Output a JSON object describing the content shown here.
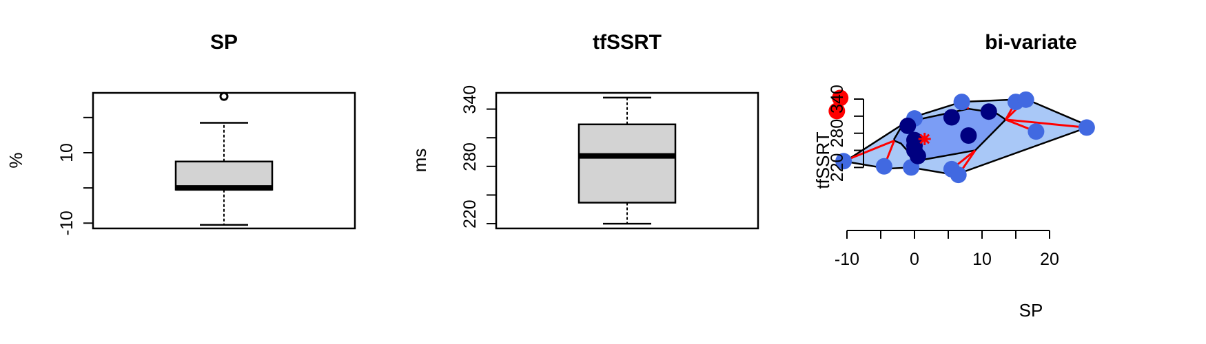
{
  "chart_data": [
    {
      "type": "boxplot",
      "title": "SP",
      "ylabel": "%",
      "yticks": [
        "-10",
        "10"
      ],
      "ylim": [
        -11.5,
        27
      ],
      "stats": {
        "min": -10.5,
        "q1": -0.5,
        "median": 0,
        "q3": 7.5,
        "max": 18.5,
        "outliers": [
          26
        ]
      },
      "fill": "#d3d3d3"
    },
    {
      "type": "boxplot",
      "title": "tfSSRT",
      "ylabel": "ms",
      "yticks": [
        "220",
        "280",
        "340"
      ],
      "ylim": [
        205,
        347
      ],
      "stats": {
        "min": 210,
        "q1": 232,
        "median": 281,
        "q3": 314,
        "max": 342,
        "outliers": []
      },
      "fill": "#d3d3d3"
    },
    {
      "type": "scatter",
      "subtype": "bagplot",
      "title": "bi-variate",
      "xlabel": "SP",
      "ylabel": "tfSSRT",
      "xticks": [
        "-10",
        "0",
        "10",
        "20"
      ],
      "yticks": [
        "220",
        "280",
        "340"
      ],
      "xlim": [
        -12,
        27
      ],
      "ylim": [
        205,
        347
      ],
      "center": [
        1.5,
        270
      ],
      "colors": {
        "bag": "#7b9df5",
        "loop": "#a9c8f7",
        "outer_point": "#4169e1",
        "inner_point": "#000080",
        "outlier": "#ff0000",
        "whisker": "#ff0000"
      },
      "loop_hull": [
        [
          -10,
          230
        ],
        [
          -4,
          218
        ],
        [
          -0.5,
          220
        ],
        [
          6,
          207
        ],
        [
          26,
          292
        ],
        [
          16.5,
          340
        ],
        [
          7,
          335
        ],
        [
          0,
          309
        ],
        [
          -10.5,
          229
        ]
      ],
      "bag_hull": [
        [
          -3,
          267
        ],
        [
          -2,
          262
        ],
        [
          -0.5,
          242
        ],
        [
          0.5,
          232
        ],
        [
          9,
          250
        ],
        [
          13.5,
          304
        ],
        [
          12,
          316
        ],
        [
          8,
          323
        ],
        [
          0.5,
          304
        ],
        [
          -2,
          290
        ],
        [
          -3,
          270
        ]
      ],
      "outer_points": [
        [
          -10.5,
          231
        ],
        [
          -4.5,
          222
        ],
        [
          -0.5,
          220
        ],
        [
          5.5,
          217
        ],
        [
          6.5,
          207
        ],
        [
          0,
          306
        ],
        [
          7,
          335
        ],
        [
          15,
          335
        ],
        [
          16.5,
          339
        ],
        [
          18,
          283
        ],
        [
          25.5,
          290
        ]
      ],
      "inner_points": [
        [
          -1,
          293
        ],
        [
          5.5,
          308
        ],
        [
          11,
          318
        ],
        [
          8,
          276
        ],
        [
          0,
          268
        ],
        [
          0,
          258
        ],
        [
          0,
          250
        ],
        [
          0.5,
          240
        ]
      ],
      "outliers": [
        [
          -11,
          342
        ],
        [
          -11.5,
          319
        ]
      ]
    }
  ]
}
